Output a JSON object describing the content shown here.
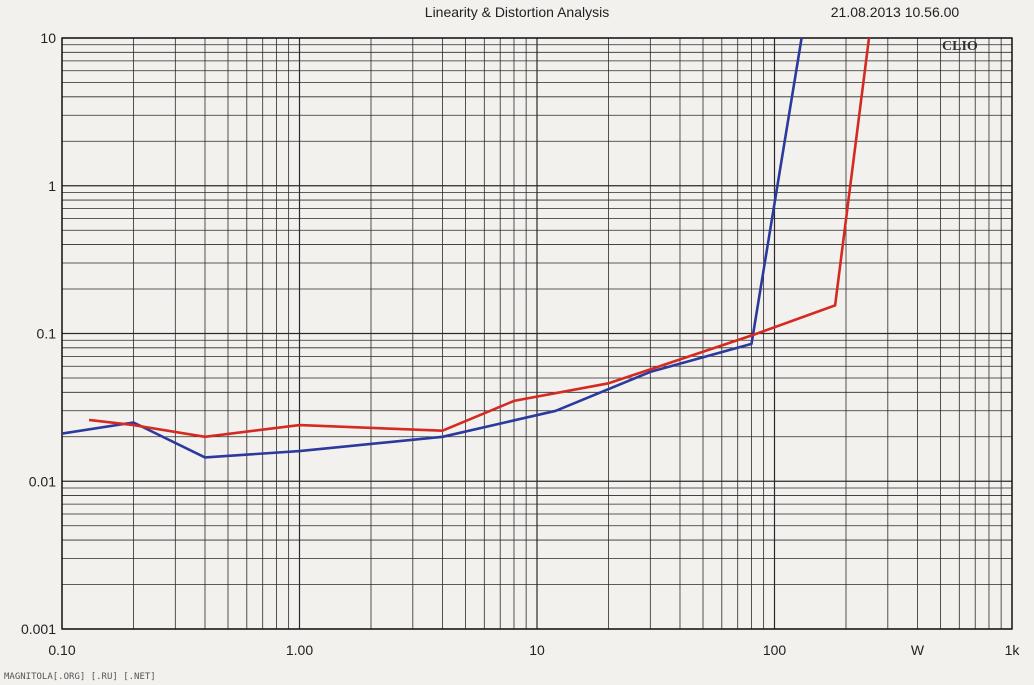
{
  "header": {
    "title": "Linearity & Distortion Analysis",
    "timestamp": "21.08.2013 10.56.00",
    "logo": "CLIO"
  },
  "footer": {
    "watermark": "MAGNITOLA[.ORG] [.RU] [.NET]"
  },
  "colors": {
    "background": "#f3f1ee",
    "grid": "#2a2a2a",
    "series_blue": "#2b3a9c",
    "series_red": "#d42a22"
  },
  "chart_data": {
    "type": "line",
    "title": "Linearity & Distortion Analysis",
    "xlabel": "W",
    "ylabel": "",
    "xscale": "log",
    "yscale": "log",
    "xlim": [
      0.1,
      1000
    ],
    "ylim": [
      0.001,
      10
    ],
    "grid": true,
    "x_tick_labels": [
      {
        "value": 0.1,
        "label": "0.10"
      },
      {
        "value": 1,
        "label": "1.00"
      },
      {
        "value": 10,
        "label": "10"
      },
      {
        "value": 100,
        "label": "100"
      },
      {
        "value": 400,
        "label": "W"
      },
      {
        "value": 1000,
        "label": "1k"
      }
    ],
    "y_tick_labels": [
      {
        "value": 10,
        "label": "10"
      },
      {
        "value": 1,
        "label": "1"
      },
      {
        "value": 0.1,
        "label": "0.1"
      },
      {
        "value": 0.01,
        "label": "0.01"
      },
      {
        "value": 0.001,
        "label": "0.001"
      }
    ],
    "series": [
      {
        "color": "#2b3a9c",
        "points": [
          [
            0.1,
            0.021
          ],
          [
            0.2,
            0.025
          ],
          [
            0.4,
            0.0145
          ],
          [
            1,
            0.016
          ],
          [
            4,
            0.02
          ],
          [
            12,
            0.03
          ],
          [
            30,
            0.055
          ],
          [
            80,
            0.085
          ],
          [
            130,
            10
          ]
        ]
      },
      {
        "color": "#d42a22",
        "points": [
          [
            0.13,
            0.026
          ],
          [
            0.2,
            0.024
          ],
          [
            0.4,
            0.02
          ],
          [
            1,
            0.024
          ],
          [
            4,
            0.022
          ],
          [
            8,
            0.035
          ],
          [
            20,
            0.046
          ],
          [
            80,
            0.097
          ],
          [
            180,
            0.155
          ],
          [
            250,
            10
          ]
        ]
      }
    ]
  }
}
